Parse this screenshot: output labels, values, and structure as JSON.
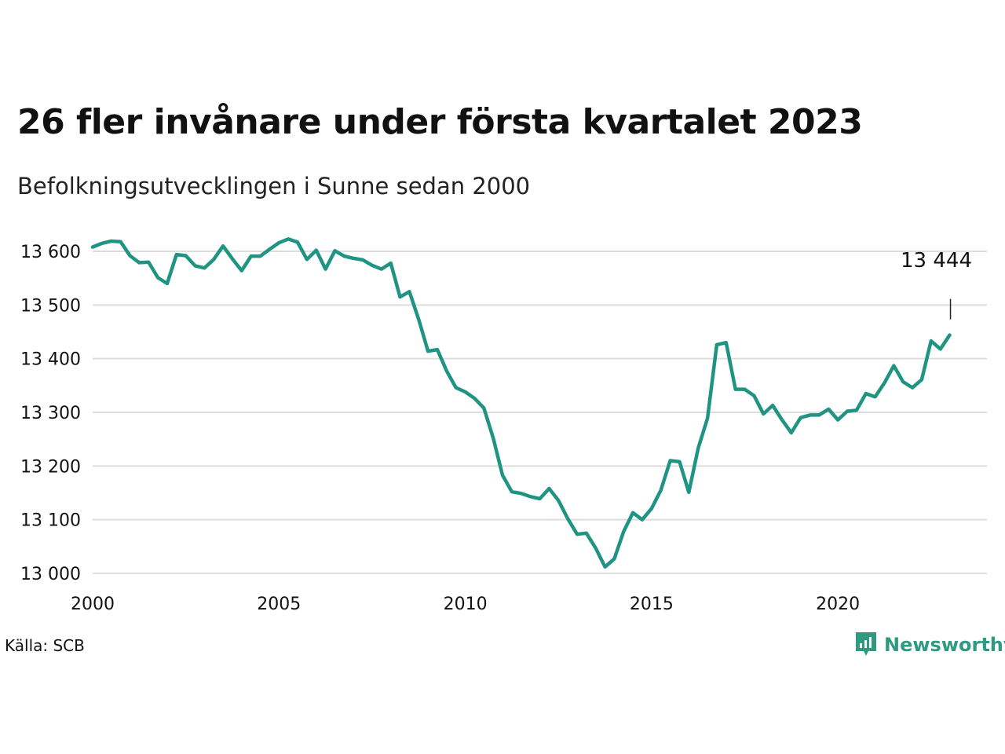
{
  "title": "26 fler invånare under första kvartalet 2023",
  "subtitle": "Befolkningsutvecklingen i Sunne sedan 2000",
  "source": "Källa: SCB",
  "brand": {
    "name": "Newsworthy",
    "icon": "newsworthy-logo-icon",
    "color": "#2e9a82"
  },
  "colors": {
    "line": "#1f9483",
    "grid": "#dddddd",
    "text": "#111111"
  },
  "chart_data": {
    "type": "line",
    "title": "26 fler invånare under första kvartalet 2023",
    "subtitle": "Befolkningsutvecklingen i Sunne sedan 2000",
    "xlabel": "",
    "ylabel": "",
    "xlim": [
      2000,
      2024
    ],
    "ylim": [
      13000,
      13600
    ],
    "x_ticks": [
      2000,
      2005,
      2010,
      2015,
      2020
    ],
    "x_tick_labels": [
      "2000",
      "2005",
      "2010",
      "2015",
      "2020"
    ],
    "y_ticks": [
      13000,
      13100,
      13200,
      13300,
      13400,
      13500,
      13600
    ],
    "y_tick_labels": [
      "13 000",
      "13 100",
      "13 200",
      "13 300",
      "13 400",
      "13 500",
      "13 600"
    ],
    "grid": true,
    "legend": "none",
    "annotation": {
      "x": 2023,
      "y": 13444,
      "label": "13 444"
    },
    "series": [
      {
        "x": [
          2000,
          2000.25,
          2000.5,
          2000.75,
          2001,
          2001.25,
          2001.5,
          2001.75,
          2002,
          2002.25,
          2002.5,
          2002.75,
          2003,
          2003.25,
          2003.5,
          2003.75,
          2004,
          2004.25,
          2004.5,
          2004.75,
          2005,
          2005.25,
          2005.5,
          2005.75,
          2006,
          2006.25,
          2006.5,
          2006.75,
          2007,
          2007.25,
          2007.5,
          2007.75,
          2008,
          2008.25,
          2008.5,
          2008.75,
          2009,
          2009.25,
          2009.5,
          2009.75,
          2010,
          2010.25,
          2010.5,
          2010.75,
          2011,
          2011.25,
          2011.5,
          2011.75,
          2012,
          2012.25,
          2012.5,
          2012.75,
          2013,
          2013.25,
          2013.5,
          2013.75,
          2014,
          2014.25,
          2014.5,
          2014.75,
          2015,
          2015.25,
          2015.5,
          2015.75,
          2016,
          2016.25,
          2016.5,
          2016.75,
          2017,
          2017.25,
          2017.5,
          2017.75,
          2018,
          2018.25,
          2018.5,
          2018.75,
          2019,
          2019.25,
          2019.5,
          2019.75,
          2020,
          2020.25,
          2020.5,
          2020.75,
          2021,
          2021.25,
          2021.5,
          2021.75,
          2022,
          2022.25,
          2022.5,
          2022.75,
          2023
        ],
        "values": [
          13608,
          13615,
          13619,
          13618,
          13592,
          13579,
          13580,
          13551,
          13540,
          13594,
          13592,
          13573,
          13569,
          13585,
          13610,
          13586,
          13564,
          13591,
          13591,
          13604,
          13616,
          13623,
          13617,
          13585,
          13602,
          13567,
          13601,
          13591,
          13587,
          13584,
          13574,
          13567,
          13578,
          13515,
          13525,
          13473,
          13414,
          13417,
          13377,
          13346,
          13338,
          13326,
          13308,
          13252,
          13183,
          13152,
          13149,
          13143,
          13139,
          13158,
          13136,
          13102,
          13073,
          13075,
          13047,
          13012,
          13027,
          13078,
          13113,
          13100,
          13121,
          13155,
          13210,
          13208,
          13151,
          13233,
          13289,
          13426,
          13430,
          13343,
          13343,
          13331,
          13297,
          13313,
          13286,
          13262,
          13290,
          13295,
          13295,
          13306,
          13286,
          13302,
          13304,
          13335,
          13329,
          13355,
          13387,
          13357,
          13346,
          13361,
          13433,
          13418,
          13444
        ]
      }
    ]
  }
}
